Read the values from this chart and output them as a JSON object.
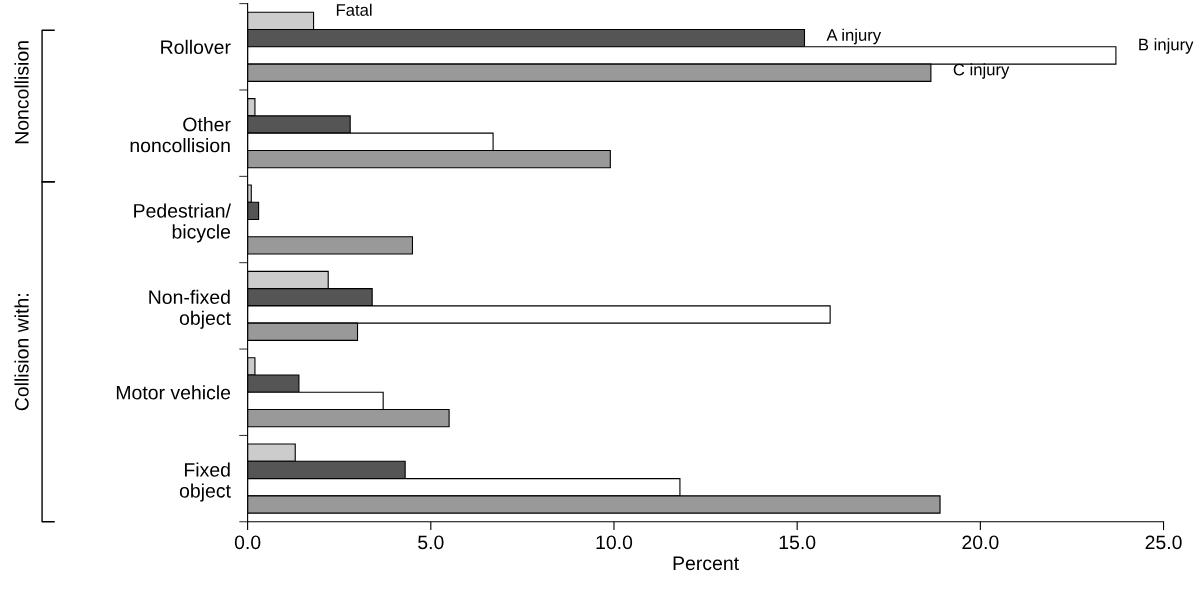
{
  "chart_data": {
    "type": "bar",
    "orientation": "horizontal",
    "xlabel": "Percent",
    "categories": [
      "Rollover",
      "Other\nnoncollision",
      "Pedestrian/\nbicycle",
      "Non-fixed\nobject",
      "Motor vehicle",
      "Fixed\nobject"
    ],
    "series": [
      {
        "name": "Fatal",
        "color": "#cccccc",
        "values": [
          1.8,
          0.2,
          0.1,
          2.2,
          0.2,
          1.3
        ]
      },
      {
        "name": "A injury",
        "color": "#555555",
        "values": [
          15.2,
          2.8,
          0.3,
          3.4,
          1.4,
          4.3
        ]
      },
      {
        "name": "B injury",
        "color": "#ffffff",
        "values": [
          23.7,
          6.7,
          0,
          15.9,
          3.7,
          11.8
        ]
      },
      {
        "name": "C injury",
        "color": "#999999",
        "values": [
          18.65,
          9.9,
          4.5,
          3.0,
          5.5,
          18.9
        ]
      }
    ],
    "xlim": [
      0,
      25
    ],
    "xticks": [
      {
        "value": 0,
        "label": "0.0"
      },
      {
        "value": 5,
        "label": "5.0"
      },
      {
        "value": 10,
        "label": "10.0"
      },
      {
        "value": 15,
        "label": "15.0"
      },
      {
        "value": 20,
        "label": "20.0"
      },
      {
        "value": 25,
        "label": "25.0"
      }
    ],
    "annotations": [
      "Noncollision",
      "Collision with:"
    ],
    "grid": false,
    "legend": false
  }
}
